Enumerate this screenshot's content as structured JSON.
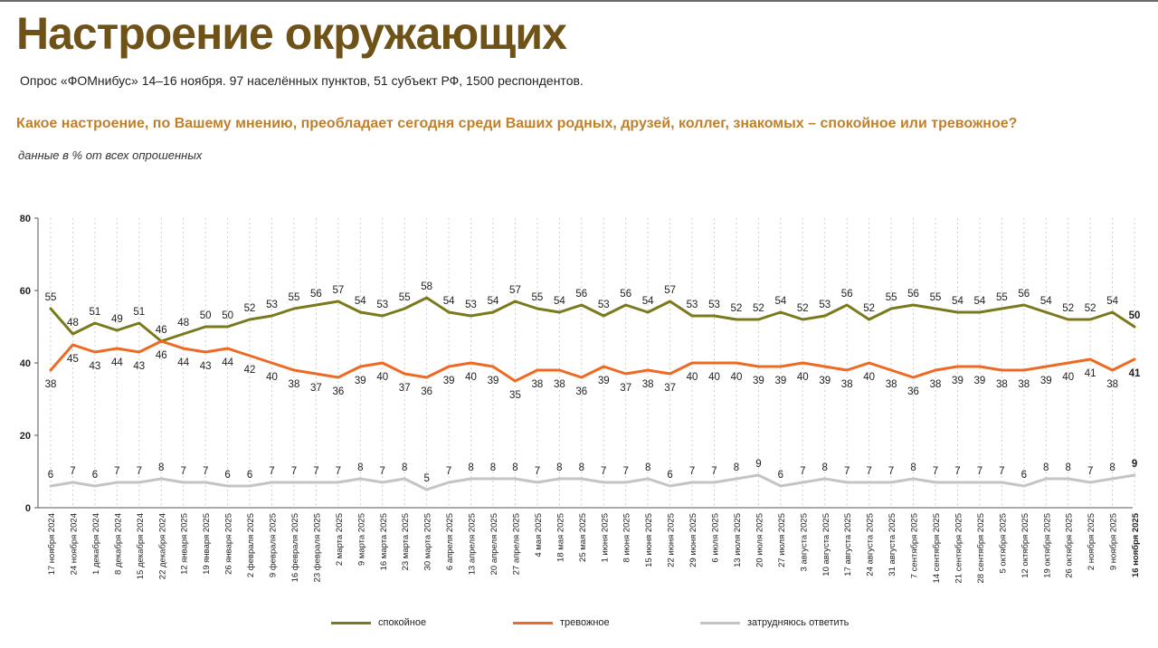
{
  "header": {
    "title": "Настроение окружающих",
    "subtitle": "Опрос «ФОМнибус» 14–16 ноября. 97 населённых пунктов, 51 субъект РФ, 1500 респондентов.",
    "question": "Какое настроение, по Вашему мнению, преобладает сегодня среди Ваших родных, друзей, коллег, знакомых – спокойное или тревожное?",
    "note": "данные в % от всех опрошенных"
  },
  "chart_data": {
    "type": "line",
    "ylim": [
      0,
      80
    ],
    "yticks": [
      0,
      20,
      40,
      60,
      80
    ],
    "grid": "vertical dotted",
    "legend_position": "bottom",
    "categories": [
      "17 ноября 2024",
      "24 ноября 2024",
      "1 декабря 2024",
      "8 декабря 2024",
      "15 декабря 2024",
      "22 декабря 2024",
      "12 января 2025",
      "19 января 2025",
      "26 января 2025",
      "2 февраля 2025",
      "9 февраля 2025",
      "16 февраля 2025",
      "23 февраля 2025",
      "2 марта 2025",
      "9 марта 2025",
      "16 марта 2025",
      "23 марта 2025",
      "30 марта 2025",
      "6 апреля 2025",
      "13 апреля 2025",
      "20 апреля 2025",
      "27 апреля 2025",
      "4 мая 2025",
      "18 мая 2025",
      "25 мая 2025",
      "1 июня 2025",
      "8 июня 2025",
      "15 июня 2025",
      "22 июня 2025",
      "29 июня 2025",
      "6 июля 2025",
      "13 июля 2025",
      "20 июля 2025",
      "27 июля 2025",
      "3 августа 2025",
      "10 августа 2025",
      "17 августа 2025",
      "24 августа 2025",
      "31 августа 2025",
      "7 сентября 2025",
      "14 сентября 2025",
      "21 сентября 2025",
      "28 сентября 2025",
      "5 октября 2025",
      "12 октября 2025",
      "19 октября 2025",
      "26 октября 2025",
      "2 ноября 2025",
      "9 ноября 2025",
      "16 ноября 2025"
    ],
    "series": [
      {
        "name": "спокойное",
        "color": "#7a7a1c",
        "values": [
          55,
          48,
          51,
          49,
          51,
          46,
          48,
          50,
          50,
          52,
          53,
          55,
          56,
          57,
          54,
          53,
          55,
          58,
          54,
          53,
          54,
          57,
          55,
          54,
          56,
          53,
          56,
          54,
          57,
          53,
          53,
          52,
          52,
          54,
          52,
          53,
          56,
          52,
          55,
          56,
          55,
          54,
          54,
          55,
          56,
          54,
          52,
          52,
          54,
          50
        ],
        "label_position": "above"
      },
      {
        "name": "тревожное",
        "color": "#ee6a22",
        "values": [
          38,
          45,
          43,
          44,
          43,
          46,
          44,
          43,
          44,
          42,
          40,
          38,
          37,
          36,
          39,
          40,
          37,
          36,
          39,
          40,
          39,
          35,
          38,
          38,
          36,
          39,
          37,
          38,
          37,
          40,
          40,
          40,
          39,
          39,
          40,
          39,
          38,
          40,
          38,
          36,
          38,
          39,
          39,
          38,
          38,
          39,
          40,
          41,
          38,
          41
        ],
        "label_position": "below"
      },
      {
        "name": "затрудняюсь ответить",
        "color": "#c4c4c4",
        "values": [
          6,
          7,
          6,
          7,
          7,
          8,
          7,
          7,
          6,
          6,
          7,
          7,
          7,
          7,
          8,
          7,
          8,
          5,
          7,
          8,
          8,
          8,
          7,
          8,
          8,
          7,
          7,
          8,
          6,
          7,
          7,
          8,
          9,
          6,
          7,
          8,
          7,
          7,
          7,
          8,
          7,
          7,
          7,
          7,
          6,
          8,
          8,
          7,
          8,
          9
        ],
        "label_position": "above"
      }
    ]
  }
}
